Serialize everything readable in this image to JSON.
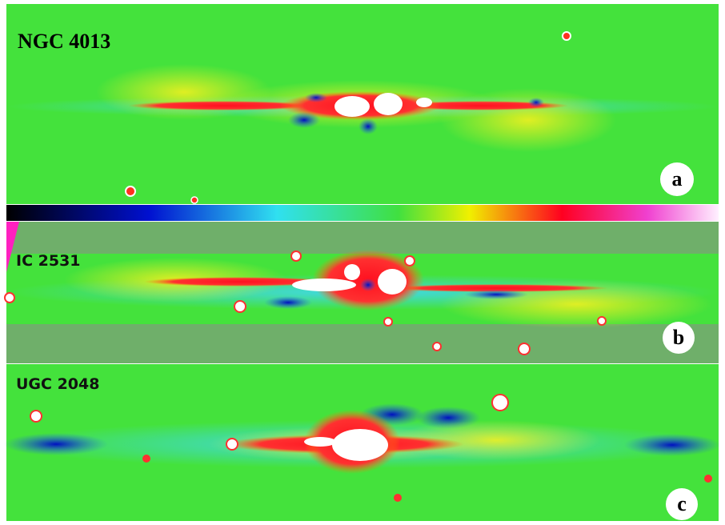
{
  "panels": [
    {
      "title": "NGC 4013",
      "letter": "a"
    },
    {
      "title": "IC 2531",
      "letter": "b"
    },
    {
      "title": "UGC 2048",
      "letter": "c"
    }
  ]
}
